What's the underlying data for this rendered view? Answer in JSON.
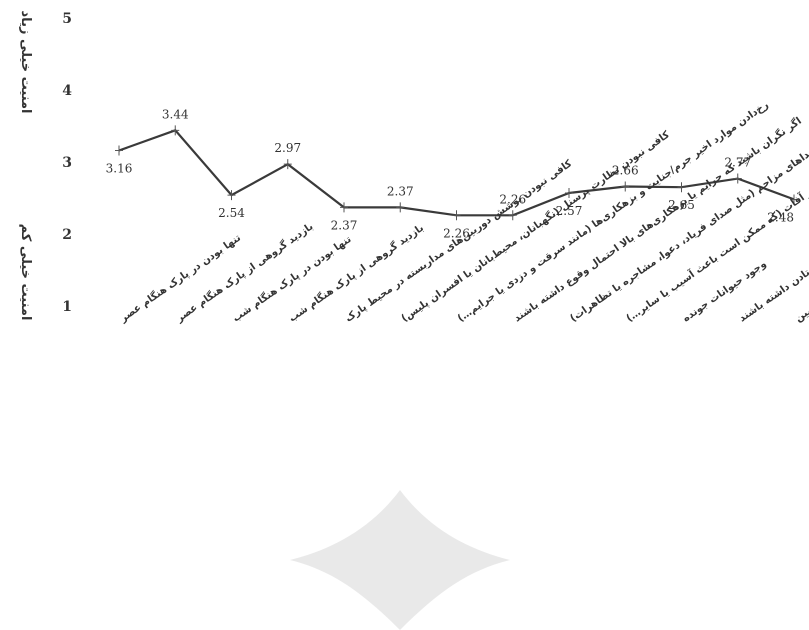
{
  "chart_data": {
    "type": "line",
    "categories": [
      "تنها بودن در پارک هنگام عصر",
      "بازدید گروهی از پارک هنگام عصر",
      "تنها بودن در پارک هنگام شب",
      "بازدید گروهی از پارک هنگام شب",
      "کافی نبودن پوشش دوربین‌های مداربسته در محیط پارک",
      "کافی نبودن نظارت پرسنل (نگهبانان، محیط‌بانان یا افسران پلیس)",
      "رخ‌دادن موارد اخیر جرم/جنایت و بزهکاری‌ها (مانند سرقت و دزدی یا جرایم…)",
      "اگر نگران باشید که جرایم یا بزهکاری‌های بالا احتمال وقوع داشته باشند",
      "شنیده‌شدن سروصداهای مزاحم (مثل صدای فریاد، دعوا، مشاجره یا تظاهرات)",
      "مشکلات جدی پشه‌ها و سایر آفات (که ممکن است باعث آسیب یا سایر…)",
      "وجود حیوانات جونده",
      "وجود درختان خطرناکی که احتمال افتادن داشته باشند",
      "لغزنده یا ناهموار بودن سطح زمین"
    ],
    "values": [
      3.16,
      3.44,
      2.54,
      2.97,
      2.37,
      2.37,
      2.26,
      2.26,
      2.57,
      2.66,
      2.65,
      2.77,
      2.48
    ],
    "data_labels": [
      "3.16",
      "3.44",
      "2.54",
      "2.97",
      "2.37",
      "2.37",
      "2.26",
      "2.26",
      "2.57",
      "2.66",
      "2.65",
      "2.77",
      "2.48"
    ],
    "label_position": [
      "below",
      "above",
      "below",
      "above",
      "below",
      "above",
      "below",
      "above",
      "below",
      "above",
      "below",
      "above",
      "below"
    ],
    "y_ticks": [
      "1",
      "2",
      "3",
      "4",
      "5"
    ],
    "ylim": [
      1,
      5
    ],
    "y_annotation_top": "امنیت خیلی زیاد",
    "y_annotation_bottom": "امنیت خیلی کم",
    "line_color": "#3a3a3a",
    "grid": false
  }
}
